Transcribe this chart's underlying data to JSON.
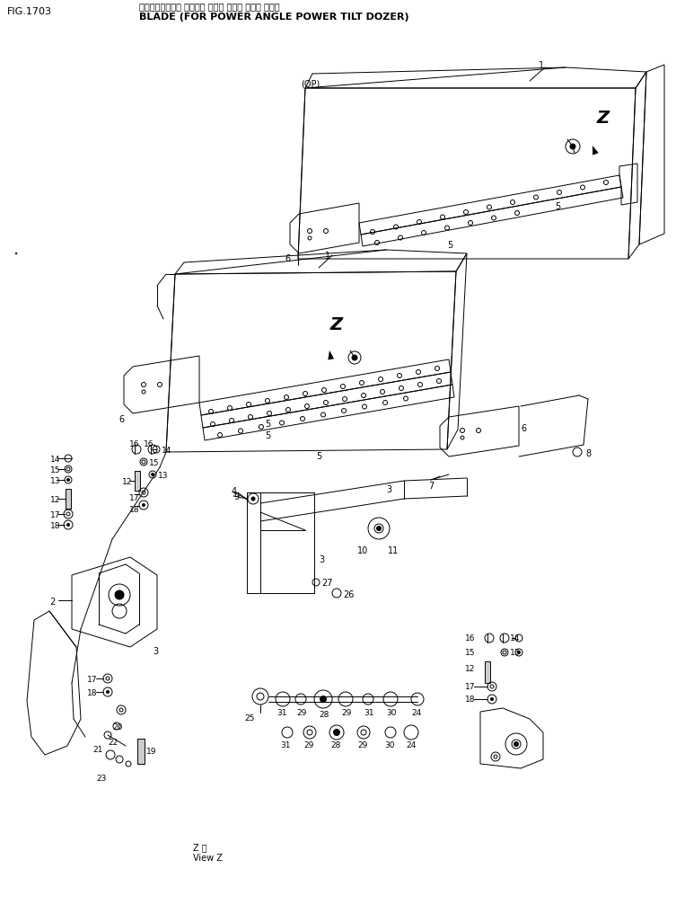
{
  "title_line1": "ブレード（パワー アングル パワー チルト ドーザ ヨウ）",
  "title_line2": "BLADE (FOR POWER ANGLE POWER TILT DOZER)",
  "fig_label": "FIG.1703",
  "bg_color": "#ffffff",
  "line_color": "#000000",
  "fig_width": 7.53,
  "fig_height": 10.16,
  "dpi": 100
}
